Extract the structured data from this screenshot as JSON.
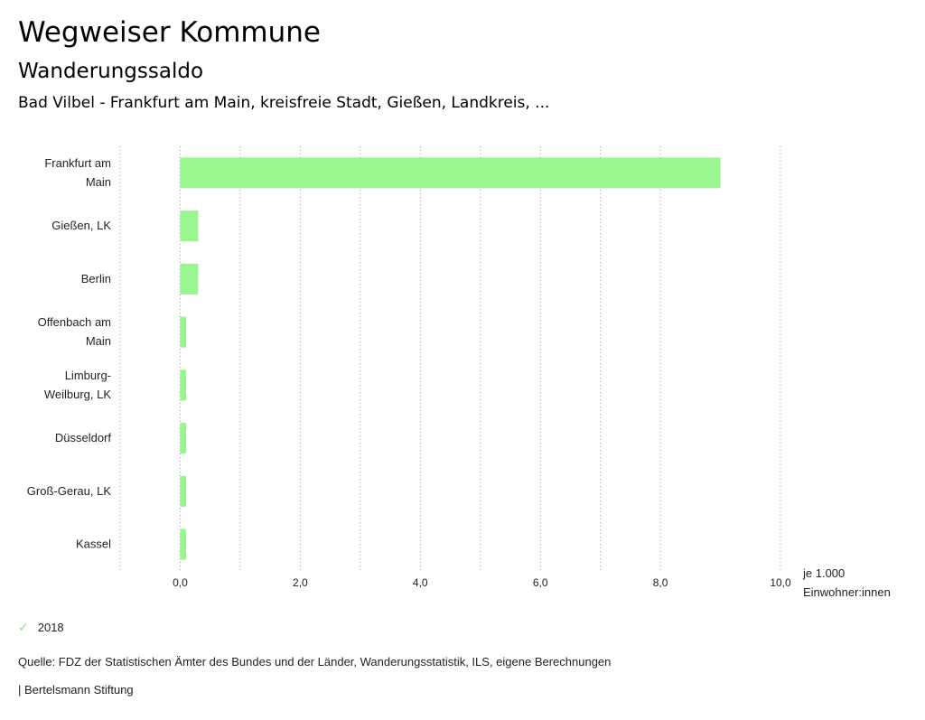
{
  "header": {
    "title": "Wegweiser Kommune",
    "subtitle": "Wanderungssaldo",
    "subsubtitle": "Bad Vilbel - Frankfurt am Main, kreisfreie Stadt, Gießen, Landkreis, ..."
  },
  "chart_data": {
    "type": "bar",
    "orientation": "horizontal",
    "categories": [
      [
        "Frankfurt am",
        "Main"
      ],
      [
        "Gießen, LK"
      ],
      [
        "Berlin"
      ],
      [
        "Offenbach am",
        "Main"
      ],
      [
        "Limburg-",
        "Weilburg, LK"
      ],
      [
        "Düsseldorf"
      ],
      [
        "Groß-Gerau, LK"
      ],
      [
        "Kassel"
      ]
    ],
    "series": [
      {
        "name": "2018",
        "values": [
          9.0,
          0.3,
          0.3,
          0.1,
          0.1,
          0.1,
          0.1,
          0.1
        ]
      }
    ],
    "xlim": [
      -1.0,
      10.0
    ],
    "ticks": [
      0,
      2,
      4,
      6,
      8,
      10
    ],
    "tick_labels": [
      "0,0",
      "2,0",
      "4,0",
      "6,0",
      "8,0",
      "10,0"
    ],
    "unit_label_lines": [
      "je 1.000",
      "Einwohner:innen"
    ],
    "grid": "vertical-dotted",
    "bar_color": "#98f590"
  },
  "legend": {
    "label": "2018",
    "color": "#8ee08a"
  },
  "footer": {
    "source": "Quelle: FDZ der Statistischen Ämter des Bundes und der Länder, Wanderungsstatistik, ILS, eigene Berechnungen",
    "credit": "| Bertelsmann Stiftung"
  }
}
